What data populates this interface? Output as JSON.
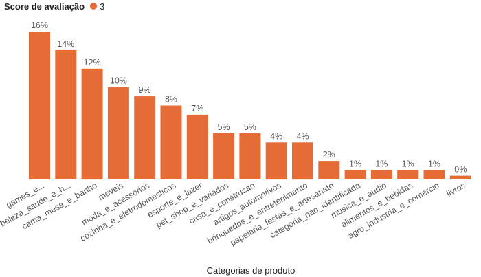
{
  "colors": {
    "bar": "#E66C37",
    "text": "#555555"
  },
  "chart_data": {
    "type": "bar",
    "legend": {
      "title": "Score de avaliação",
      "entries": [
        "3"
      ],
      "position": "top-left"
    },
    "xlabel": "Categorias de produto",
    "ylabel": "",
    "ylim": [
      0,
      16
    ],
    "grid": false,
    "categories": [
      "games_e...",
      "beleza_saude_e_h...",
      "cama_mesa_e_banho",
      "moveis",
      "moda_e_acessorios",
      "cozinha_e_eletrodomesticos",
      "esporte_e_lazer",
      "pet_shop_e_variados",
      "casa_e_construcao",
      "artigos_automotivos",
      "brinquedos_e_entretenimento",
      "papelaria_festas_e_artesanato",
      "categoria_nao_identificada",
      "musica_e_audio",
      "alimentos_e_bebidas",
      "agro_industria_e_comercio",
      "livros"
    ],
    "values": [
      16,
      14,
      12,
      10,
      9,
      8,
      7,
      5,
      5,
      4,
      4,
      2,
      1,
      1,
      1,
      1,
      0.4
    ],
    "data_labels": [
      "16%",
      "14%",
      "12%",
      "10%",
      "9%",
      "8%",
      "7%",
      "5%",
      "5%",
      "4%",
      "4%",
      "2%",
      "1%",
      "1%",
      "1%",
      "1%",
      "0%"
    ]
  }
}
